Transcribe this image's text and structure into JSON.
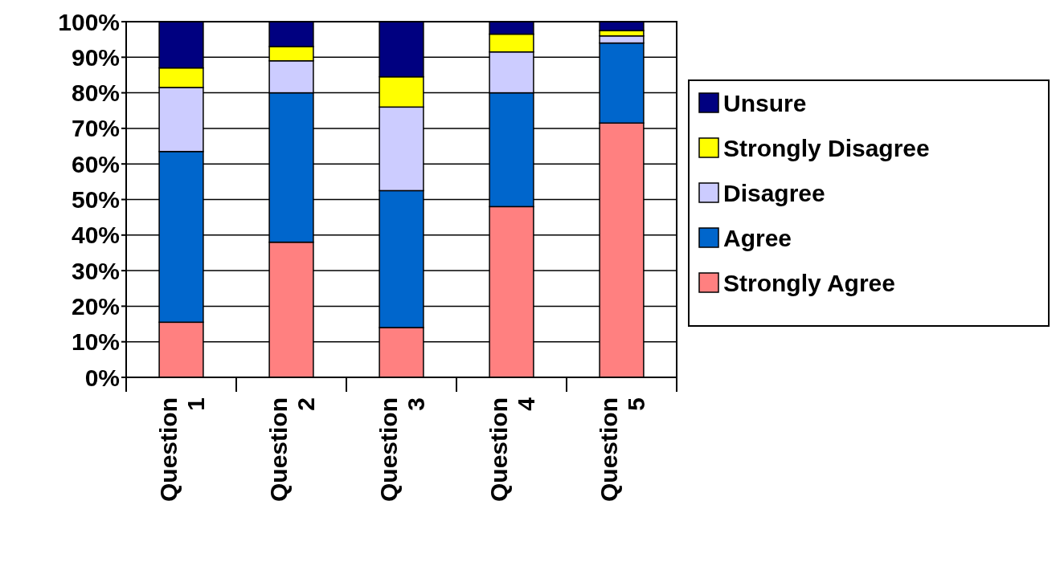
{
  "chart_data": {
    "type": "bar",
    "stacked": true,
    "categories": [
      "Question 1",
      "Question 2",
      "Question 3",
      "Question 4",
      "Question 5"
    ],
    "series": [
      {
        "name": "Strongly Agree",
        "color": "#ff8080",
        "values": [
          15.5,
          38,
          14,
          48,
          71.5
        ]
      },
      {
        "name": "Agree",
        "color": "#0066cc",
        "values": [
          48,
          42,
          38.5,
          32,
          22.5
        ]
      },
      {
        "name": "Disagree",
        "color": "#ccccff",
        "values": [
          18,
          9,
          23.5,
          11.5,
          2
        ]
      },
      {
        "name": "Strongly Disagree",
        "color": "#ffff00",
        "values": [
          5.5,
          4,
          8.5,
          5,
          1.5
        ]
      },
      {
        "name": "Unsure",
        "color": "#000080",
        "values": [
          13,
          7,
          15.5,
          3.5,
          2.5
        ]
      }
    ],
    "ylim": [
      0,
      100
    ],
    "yticks": [
      {
        "value": 0,
        "label": "0%"
      },
      {
        "value": 10,
        "label": "10%"
      },
      {
        "value": 20,
        "label": "20%"
      },
      {
        "value": 30,
        "label": "30%"
      },
      {
        "value": 40,
        "label": "40%"
      },
      {
        "value": 50,
        "label": "50%"
      },
      {
        "value": 60,
        "label": "60%"
      },
      {
        "value": 70,
        "label": "70%"
      },
      {
        "value": 80,
        "label": "80%"
      },
      {
        "value": 90,
        "label": "90%"
      },
      {
        "value": 100,
        "label": "100%"
      }
    ],
    "grid": "y",
    "legend": "right"
  }
}
